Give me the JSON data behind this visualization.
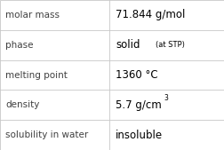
{
  "rows": [
    {
      "label": "molar mass",
      "value": "71.844 g/mol",
      "type": "plain"
    },
    {
      "label": "phase",
      "value": "solid",
      "value_suffix": "(at STP)",
      "type": "suffix"
    },
    {
      "label": "melting point",
      "value": "1360 °C",
      "type": "plain"
    },
    {
      "label": "density",
      "value": "5.7 g/cm",
      "superscript": "3",
      "type": "super"
    },
    {
      "label": "solubility in water",
      "value": "insoluble",
      "type": "plain"
    }
  ],
  "col_split": 0.485,
  "background_color": "#ffffff",
  "border_color": "#c8c8c8",
  "label_color": "#404040",
  "value_color": "#000000",
  "label_fontsize": 7.5,
  "value_fontsize": 8.5,
  "suffix_fontsize": 6.0,
  "super_fontsize": 5.5
}
